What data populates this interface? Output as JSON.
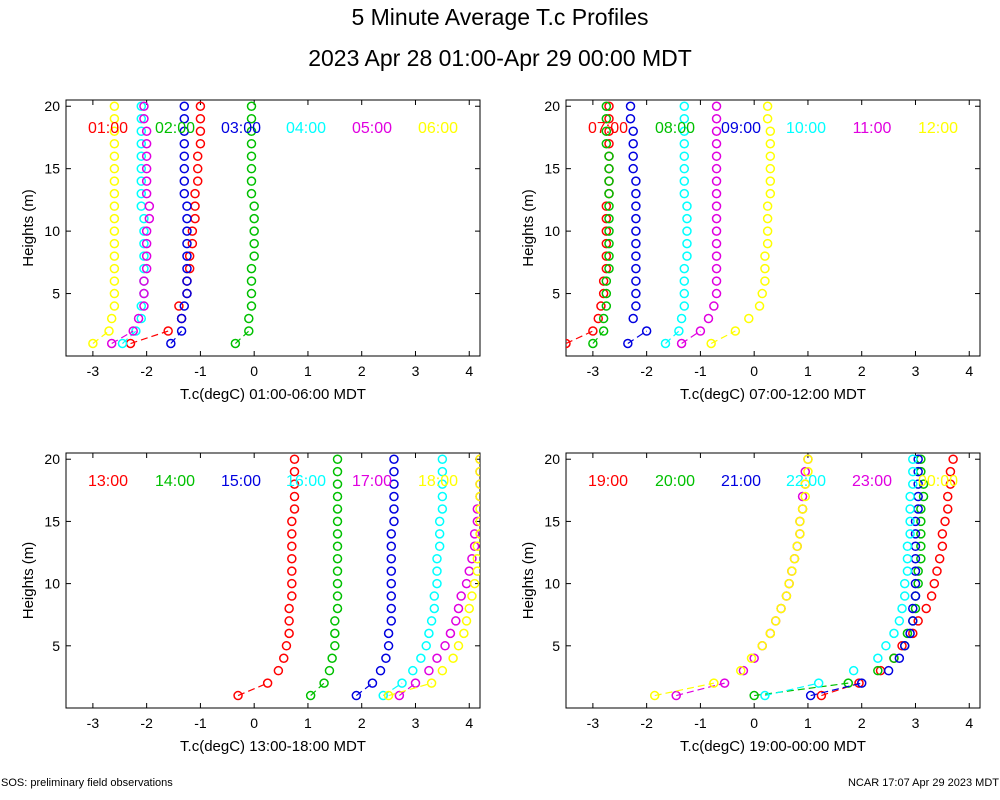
{
  "title": "5 Minute Average T.c Profiles",
  "subtitle": "2023 Apr 28 01:00-Apr 29 00:00 MDT",
  "footer_left": "SOS: preliminary field observations",
  "footer_right": "NCAR 17:07 Apr 29 2023 MDT",
  "colors": {
    "red": "#ff0000",
    "green": "#00c000",
    "blue": "#0000e0",
    "cyan": "#00ffff",
    "magenta": "#e000e0",
    "yellow": "#ffff00"
  },
  "chart_data": [
    {
      "type": "scatter",
      "xlabel": "T.c(degC) 01:00-06:00 MDT",
      "ylabel": "Heights (m)",
      "xlim": [
        -3.5,
        4.2
      ],
      "ylim": [
        0,
        20.5
      ],
      "xticks": [
        -3,
        -2,
        -1,
        0,
        1,
        2,
        3,
        4
      ],
      "yticks": [
        5,
        10,
        15,
        20
      ],
      "series": [
        {
          "name": "01:00",
          "color": "red",
          "x": [
            -2.3,
            -1.6,
            -1.35,
            -1.4,
            -1.25,
            -1.25,
            -1.2,
            -1.2,
            -1.15,
            -1.15,
            -1.1,
            -1.1,
            -1.1,
            -1.05,
            -1.05,
            -1.05,
            -1.0,
            -1.0,
            -1.0,
            -1.0
          ]
        },
        {
          "name": "02:00",
          "color": "green",
          "x": [
            -0.35,
            -0.1,
            -0.1,
            -0.05,
            -0.05,
            -0.05,
            -0.05,
            0.0,
            0.0,
            0.0,
            0.0,
            0.0,
            -0.05,
            -0.05,
            -0.05,
            -0.05,
            -0.05,
            -0.05,
            -0.05,
            -0.05
          ]
        },
        {
          "name": "03:00",
          "color": "blue",
          "x": [
            -1.55,
            -1.35,
            -1.35,
            -1.3,
            -1.25,
            -1.25,
            -1.25,
            -1.25,
            -1.25,
            -1.25,
            -1.25,
            -1.25,
            -1.3,
            -1.3,
            -1.3,
            -1.3,
            -1.3,
            -1.3,
            -1.3,
            -1.3
          ]
        },
        {
          "name": "04:00",
          "color": "cyan",
          "x": [
            -2.45,
            -2.2,
            -2.1,
            -2.1,
            -2.05,
            -2.05,
            -2.05,
            -2.05,
            -2.05,
            -2.05,
            -2.05,
            -2.1,
            -2.1,
            -2.1,
            -2.1,
            -2.1,
            -2.1,
            -2.1,
            -2.1,
            -2.1
          ]
        },
        {
          "name": "05:00",
          "color": "magenta",
          "x": [
            -2.65,
            -2.25,
            -2.15,
            -2.05,
            -2.05,
            -2.05,
            -2.0,
            -2.0,
            -2.0,
            -2.0,
            -1.95,
            -1.95,
            -2.0,
            -2.0,
            -2.0,
            -2.0,
            -2.0,
            -2.0,
            -2.05,
            -2.05
          ]
        },
        {
          "name": "06:00",
          "color": "yellow",
          "x": [
            -3.0,
            -2.7,
            -2.65,
            -2.6,
            -2.6,
            -2.6,
            -2.6,
            -2.6,
            -2.6,
            -2.6,
            -2.6,
            -2.6,
            -2.6,
            -2.6,
            -2.6,
            -2.6,
            -2.6,
            -2.6,
            -2.6,
            -2.6
          ]
        }
      ]
    },
    {
      "type": "scatter",
      "xlabel": "T.c(degC) 07:00-12:00 MDT",
      "ylabel": "Heights (m)",
      "xlim": [
        -3.5,
        4.2
      ],
      "ylim": [
        0,
        20.5
      ],
      "xticks": [
        -3,
        -2,
        -1,
        0,
        1,
        2,
        3,
        4
      ],
      "yticks": [
        5,
        10,
        15,
        20
      ],
      "series": [
        {
          "name": "07:00",
          "color": "red",
          "x": [
            -3.5,
            -3.0,
            -2.9,
            -2.85,
            -2.8,
            -2.8,
            -2.75,
            -2.75,
            -2.75,
            -2.75,
            -2.75,
            -2.75,
            -2.7,
            -2.7,
            -2.7,
            -2.7,
            -2.7,
            -2.7,
            -2.7,
            -2.7
          ]
        },
        {
          "name": "08:00",
          "color": "green",
          "x": [
            -3.0,
            -2.8,
            -2.8,
            -2.75,
            -2.75,
            -2.75,
            -2.7,
            -2.7,
            -2.7,
            -2.7,
            -2.7,
            -2.7,
            -2.7,
            -2.7,
            -2.7,
            -2.7,
            -2.75,
            -2.75,
            -2.75,
            -2.75
          ]
        },
        {
          "name": "09:00",
          "color": "blue",
          "x": [
            -2.35,
            -2.0,
            -2.25,
            -2.2,
            -2.2,
            -2.2,
            -2.2,
            -2.2,
            -2.2,
            -2.2,
            -2.2,
            -2.2,
            -2.2,
            -2.2,
            -2.25,
            -2.25,
            -2.25,
            -2.25,
            -2.3,
            -2.3
          ]
        },
        {
          "name": "10:00",
          "color": "cyan",
          "x": [
            -1.65,
            -1.4,
            -1.35,
            -1.3,
            -1.3,
            -1.3,
            -1.3,
            -1.25,
            -1.25,
            -1.25,
            -1.25,
            -1.25,
            -1.3,
            -1.3,
            -1.3,
            -1.3,
            -1.3,
            -1.3,
            -1.3,
            -1.3
          ]
        },
        {
          "name": "11:00",
          "color": "magenta",
          "x": [
            -1.35,
            -1.0,
            -0.85,
            -0.75,
            -0.7,
            -0.7,
            -0.7,
            -0.7,
            -0.7,
            -0.7,
            -0.7,
            -0.7,
            -0.7,
            -0.7,
            -0.7,
            -0.7,
            -0.7,
            -0.7,
            -0.7,
            -0.7
          ]
        },
        {
          "name": "12:00",
          "color": "yellow",
          "x": [
            -0.8,
            -0.35,
            -0.1,
            0.1,
            0.15,
            0.2,
            0.2,
            0.2,
            0.25,
            0.25,
            0.25,
            0.25,
            0.3,
            0.3,
            0.3,
            0.3,
            0.3,
            0.3,
            0.25,
            0.25
          ]
        }
      ]
    },
    {
      "type": "scatter",
      "xlabel": "T.c(degC) 13:00-18:00 MDT",
      "ylabel": "Heights (m)",
      "xlim": [
        -3.5,
        4.2
      ],
      "ylim": [
        0,
        20.5
      ],
      "xticks": [
        -3,
        -2,
        -1,
        0,
        1,
        2,
        3,
        4
      ],
      "yticks": [
        5,
        10,
        15,
        20
      ],
      "series": [
        {
          "name": "13:00",
          "color": "red",
          "x": [
            -0.3,
            0.25,
            0.45,
            0.55,
            0.6,
            0.65,
            0.65,
            0.65,
            0.7,
            0.7,
            0.7,
            0.7,
            0.7,
            0.7,
            0.7,
            0.75,
            0.75,
            0.75,
            0.75,
            0.75
          ]
        },
        {
          "name": "14:00",
          "color": "green",
          "x": [
            1.05,
            1.3,
            1.4,
            1.45,
            1.5,
            1.5,
            1.5,
            1.55,
            1.55,
            1.55,
            1.55,
            1.55,
            1.55,
            1.55,
            1.55,
            1.55,
            1.55,
            1.55,
            1.55,
            1.55
          ]
        },
        {
          "name": "15:00",
          "color": "blue",
          "x": [
            1.9,
            2.2,
            2.35,
            2.45,
            2.5,
            2.5,
            2.55,
            2.55,
            2.55,
            2.55,
            2.55,
            2.55,
            2.55,
            2.55,
            2.6,
            2.6,
            2.6,
            2.6,
            2.6,
            2.6
          ]
        },
        {
          "name": "16:00",
          "color": "cyan",
          "x": [
            2.4,
            2.75,
            2.95,
            3.1,
            3.2,
            3.25,
            3.3,
            3.35,
            3.35,
            3.4,
            3.4,
            3.4,
            3.45,
            3.45,
            3.45,
            3.5,
            3.5,
            3.5,
            3.5,
            3.5
          ]
        },
        {
          "name": "17:00",
          "color": "magenta",
          "x": [
            2.7,
            3.0,
            3.25,
            3.4,
            3.55,
            3.65,
            3.75,
            3.8,
            3.85,
            3.95,
            4.0,
            4.05,
            4.1,
            4.1,
            4.15,
            4.15,
            4.2,
            4.2,
            4.2,
            4.2
          ]
        },
        {
          "name": "18:00",
          "color": "yellow",
          "x": [
            2.5,
            3.3,
            3.5,
            3.7,
            3.8,
            3.9,
            3.95,
            4.0,
            4.05,
            4.1,
            4.15,
            4.15,
            4.15,
            4.2,
            4.2,
            4.2,
            4.2,
            4.2,
            4.2,
            4.2
          ]
        }
      ]
    },
    {
      "type": "scatter",
      "xlabel": "T.c(degC) 19:00-00:00 MDT",
      "ylabel": "Heights (m)",
      "xlim": [
        -3.5,
        4.2
      ],
      "ylim": [
        0,
        20.5
      ],
      "xticks": [
        -3,
        -2,
        -1,
        0,
        1,
        2,
        3,
        4
      ],
      "yticks": [
        5,
        10,
        15,
        20
      ],
      "series": [
        {
          "name": "19:00",
          "color": "red",
          "x": [
            1.25,
            1.95,
            2.35,
            2.6,
            2.75,
            2.95,
            3.05,
            3.2,
            3.3,
            3.35,
            3.4,
            3.45,
            3.5,
            3.5,
            3.55,
            3.6,
            3.6,
            3.65,
            3.65,
            3.7
          ]
        },
        {
          "name": "20:00",
          "color": "green",
          "x": [
            0.0,
            1.75,
            2.3,
            2.6,
            2.8,
            2.85,
            2.95,
            3.0,
            3.0,
            3.05,
            3.05,
            3.1,
            3.1,
            3.1,
            3.1,
            3.1,
            3.15,
            3.15,
            3.1,
            3.1
          ]
        },
        {
          "name": "21:00",
          "color": "blue",
          "x": [
            1.05,
            2.0,
            2.5,
            2.7,
            2.8,
            2.9,
            2.95,
            2.95,
            3.0,
            3.0,
            3.0,
            3.0,
            3.0,
            3.0,
            3.0,
            3.05,
            3.05,
            3.05,
            3.05,
            3.05
          ]
        },
        {
          "name": "22:00",
          "color": "cyan",
          "x": [
            0.2,
            1.2,
            1.85,
            2.3,
            2.45,
            2.6,
            2.7,
            2.75,
            2.8,
            2.8,
            2.85,
            2.85,
            2.85,
            2.9,
            2.9,
            2.9,
            2.9,
            2.95,
            2.95,
            2.95
          ]
        },
        {
          "name": "23:00",
          "color": "magenta",
          "x": [
            -1.45,
            -0.55,
            -0.2,
            0.0,
            0.15,
            0.3,
            0.4,
            0.5,
            0.6,
            0.65,
            0.7,
            0.75,
            0.8,
            0.85,
            0.85,
            0.9,
            0.9,
            0.95,
            0.95,
            1.0
          ]
        },
        {
          "name": "00:00",
          "color": "yellow",
          "x": [
            -1.85,
            -0.75,
            -0.25,
            -0.05,
            0.15,
            0.3,
            0.4,
            0.5,
            0.6,
            0.65,
            0.7,
            0.75,
            0.8,
            0.85,
            0.85,
            0.9,
            0.95,
            0.95,
            1.0,
            1.0
          ]
        }
      ]
    }
  ],
  "heights": [
    1,
    2,
    3,
    4,
    5,
    6,
    7,
    8,
    9,
    10,
    11,
    12,
    13,
    14,
    15,
    16,
    17,
    18,
    19,
    20
  ]
}
